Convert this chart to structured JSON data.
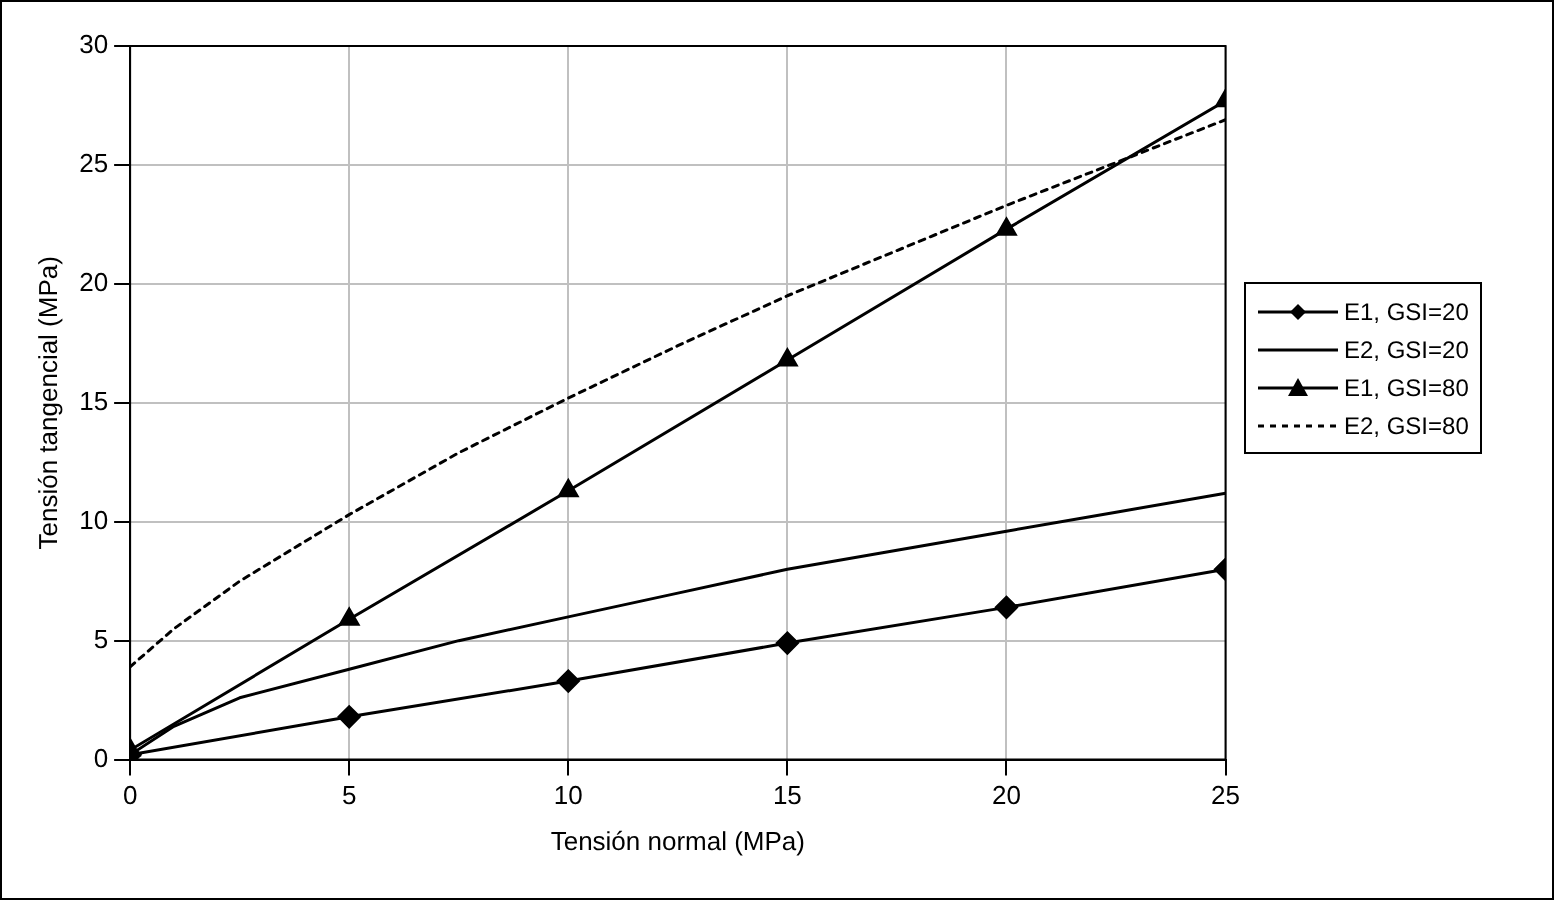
{
  "chart_data": {
    "type": "line",
    "xlabel": "Tensión normal (MPa)",
    "ylabel": "Tensión tangencial (MPa)",
    "xlim": [
      0,
      25
    ],
    "xticks": [
      0,
      5,
      10,
      15,
      20,
      25
    ],
    "ylim": [
      0,
      30
    ],
    "yticks": [
      0,
      5,
      10,
      15,
      20,
      25,
      30
    ],
    "grid": true,
    "legend": "right",
    "series": [
      {
        "name": "E1, GSI=20",
        "color": "#000000",
        "marker": "diamond",
        "line_style": "solid",
        "x": [
          0,
          5,
          10,
          15,
          20,
          25
        ],
        "values": [
          0.2,
          1.8,
          3.3,
          4.9,
          6.4,
          8.0
        ]
      },
      {
        "name": "E2, GSI=20",
        "color": "#000000",
        "marker": "none",
        "line_style": "solid",
        "x": [
          0,
          1,
          2.5,
          5,
          7.5,
          10,
          12.5,
          15,
          17.5,
          20,
          22.5,
          25
        ],
        "values": [
          0.2,
          1.4,
          2.6,
          3.8,
          5.0,
          6.0,
          7.0,
          8.0,
          8.8,
          9.6,
          10.4,
          11.2
        ]
      },
      {
        "name": "E1, GSI=80",
        "color": "#000000",
        "marker": "triangle",
        "line_style": "solid",
        "x": [
          0,
          5,
          10,
          15,
          20,
          25
        ],
        "values": [
          0.4,
          5.9,
          11.3,
          16.8,
          22.3,
          27.7
        ]
      },
      {
        "name": "E2, GSI=80",
        "color": "#000000",
        "marker": "none",
        "line_style": "dotted",
        "x": [
          0,
          1,
          2.5,
          5,
          7.5,
          10,
          12.5,
          15,
          17.5,
          20,
          22.5,
          25
        ],
        "values": [
          3.9,
          5.5,
          7.5,
          10.3,
          12.9,
          15.2,
          17.4,
          19.5,
          21.4,
          23.3,
          25.1,
          26.9
        ]
      }
    ]
  }
}
